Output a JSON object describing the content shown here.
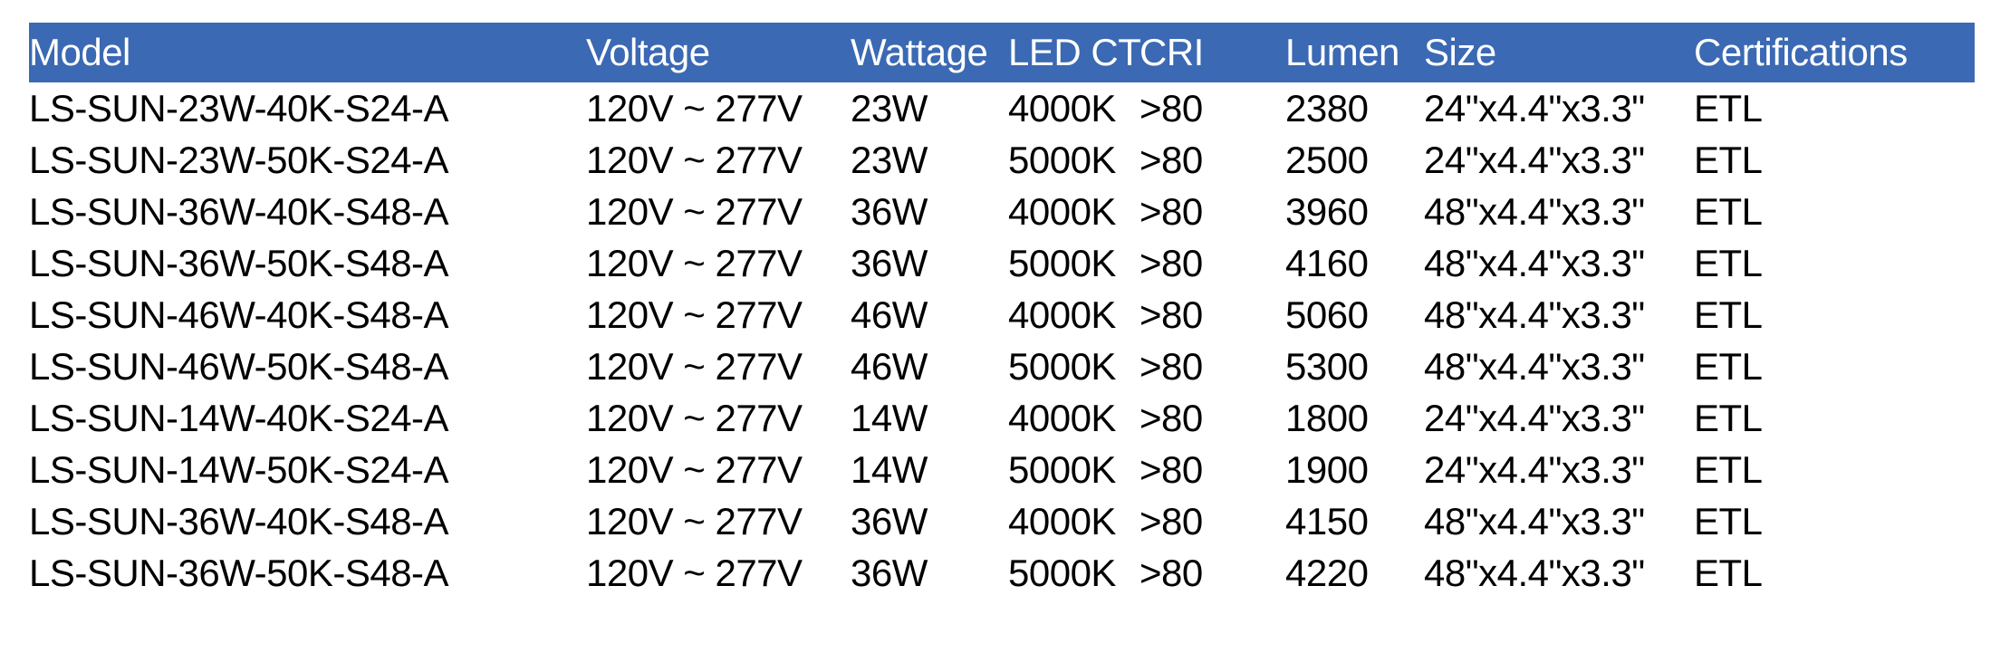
{
  "colors": {
    "header_bg": "#3B69B3",
    "header_text": "#FFFFFF",
    "body_text": "#000000",
    "page_bg": "#FFFFFF"
  },
  "table": {
    "columns": [
      {
        "key": "model",
        "label": "Model"
      },
      {
        "key": "voltage",
        "label": "Voltage"
      },
      {
        "key": "wattage",
        "label": "Wattage"
      },
      {
        "key": "led_ct",
        "label": "LED CT"
      },
      {
        "key": "cri",
        "label": "CRI"
      },
      {
        "key": "lumen",
        "label": "Lumen"
      },
      {
        "key": "size",
        "label": "Size"
      },
      {
        "key": "certifications",
        "label": "Certifications"
      }
    ],
    "rows": [
      {
        "model": "LS-SUN-23W-40K-S24-A",
        "voltage": "120V ~ 277V",
        "wattage": "23W",
        "led_ct": "4000K",
        "cri": ">80",
        "lumen": "2380",
        "size": "24\"x4.4\"x3.3\"",
        "certifications": "ETL"
      },
      {
        "model": "LS-SUN-23W-50K-S24-A",
        "voltage": "120V ~ 277V",
        "wattage": "23W",
        "led_ct": "5000K",
        "cri": ">80",
        "lumen": "2500",
        "size": "24\"x4.4\"x3.3\"",
        "certifications": "ETL"
      },
      {
        "model": "LS-SUN-36W-40K-S48-A",
        "voltage": "120V ~ 277V",
        "wattage": "36W",
        "led_ct": "4000K",
        "cri": ">80",
        "lumen": "3960",
        "size": "48\"x4.4\"x3.3\"",
        "certifications": "ETL"
      },
      {
        "model": "LS-SUN-36W-50K-S48-A",
        "voltage": "120V ~ 277V",
        "wattage": "36W",
        "led_ct": "5000K",
        "cri": ">80",
        "lumen": "4160",
        "size": "48\"x4.4\"x3.3\"",
        "certifications": "ETL"
      },
      {
        "model": "LS-SUN-46W-40K-S48-A",
        "voltage": "120V ~ 277V",
        "wattage": "46W",
        "led_ct": "4000K",
        "cri": ">80",
        "lumen": "5060",
        "size": "48\"x4.4\"x3.3\"",
        "certifications": "ETL"
      },
      {
        "model": "LS-SUN-46W-50K-S48-A",
        "voltage": "120V ~ 277V",
        "wattage": "46W",
        "led_ct": "5000K",
        "cri": ">80",
        "lumen": "5300",
        "size": "48\"x4.4\"x3.3\"",
        "certifications": "ETL"
      },
      {
        "model": "LS-SUN-14W-40K-S24-A",
        "voltage": "120V ~ 277V",
        "wattage": "14W",
        "led_ct": "4000K",
        "cri": ">80",
        "lumen": "1800",
        "size": "24\"x4.4\"x3.3\"",
        "certifications": "ETL"
      },
      {
        "model": "LS-SUN-14W-50K-S24-A",
        "voltage": "120V ~ 277V",
        "wattage": "14W",
        "led_ct": "5000K",
        "cri": ">80",
        "lumen": "1900",
        "size": "24\"x4.4\"x3.3\"",
        "certifications": "ETL"
      },
      {
        "model": "LS-SUN-36W-40K-S48-A",
        "voltage": "120V ~ 277V",
        "wattage": "36W",
        "led_ct": "4000K",
        "cri": ">80",
        "lumen": "4150",
        "size": "48\"x4.4\"x3.3\"",
        "certifications": "ETL"
      },
      {
        "model": "LS-SUN-36W-50K-S48-A",
        "voltage": "120V ~ 277V",
        "wattage": "36W",
        "led_ct": "5000K",
        "cri": ">80",
        "lumen": "4220",
        "size": "48\"x4.4\"x3.3\"",
        "certifications": "ETL"
      }
    ]
  }
}
